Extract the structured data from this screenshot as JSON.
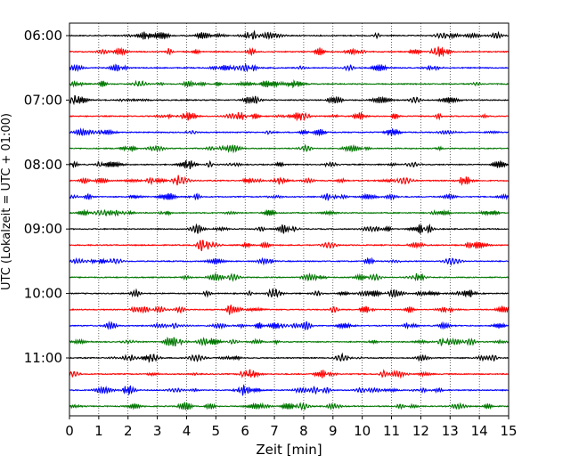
{
  "chart_data": {
    "type": "line",
    "xlabel": "Zeit  [min]",
    "ylabel": "UTC (Lokalzeit = UTC + 01:00)",
    "xlim": [
      0,
      15
    ],
    "x_ticks": [
      "0",
      "1",
      "2",
      "3",
      "4",
      "5",
      "6",
      "7",
      "8",
      "9",
      "10",
      "11",
      "12",
      "13",
      "14",
      "15"
    ],
    "y_ticks": [
      "06:00",
      "07:00",
      "08:00",
      "09:00",
      "10:00",
      "11:00"
    ],
    "grid": "vertical dotted",
    "trace_colors": [
      "#000000",
      "#ff0000",
      "#0000ff",
      "#007700"
    ],
    "traces": [
      {
        "start": "06:00",
        "color": "#000000"
      },
      {
        "start": "06:15",
        "color": "#ff0000"
      },
      {
        "start": "06:30",
        "color": "#0000ff"
      },
      {
        "start": "06:45",
        "color": "#007700"
      },
      {
        "start": "07:00",
        "color": "#000000"
      },
      {
        "start": "07:15",
        "color": "#ff0000"
      },
      {
        "start": "07:30",
        "color": "#0000ff"
      },
      {
        "start": "07:45",
        "color": "#007700"
      },
      {
        "start": "08:00",
        "color": "#000000"
      },
      {
        "start": "08:15",
        "color": "#ff0000"
      },
      {
        "start": "08:30",
        "color": "#0000ff"
      },
      {
        "start": "08:45",
        "color": "#007700"
      },
      {
        "start": "09:00",
        "color": "#000000"
      },
      {
        "start": "09:15",
        "color": "#ff0000"
      },
      {
        "start": "09:30",
        "color": "#0000ff"
      },
      {
        "start": "09:45",
        "color": "#007700"
      },
      {
        "start": "10:00",
        "color": "#000000"
      },
      {
        "start": "10:15",
        "color": "#ff0000"
      },
      {
        "start": "10:30",
        "color": "#0000ff"
      },
      {
        "start": "10:45",
        "color": "#007700"
      },
      {
        "start": "11:00",
        "color": "#000000"
      },
      {
        "start": "11:15",
        "color": "#ff0000"
      },
      {
        "start": "11:30",
        "color": "#0000ff"
      },
      {
        "start": "11:45",
        "color": "#007700"
      }
    ]
  }
}
